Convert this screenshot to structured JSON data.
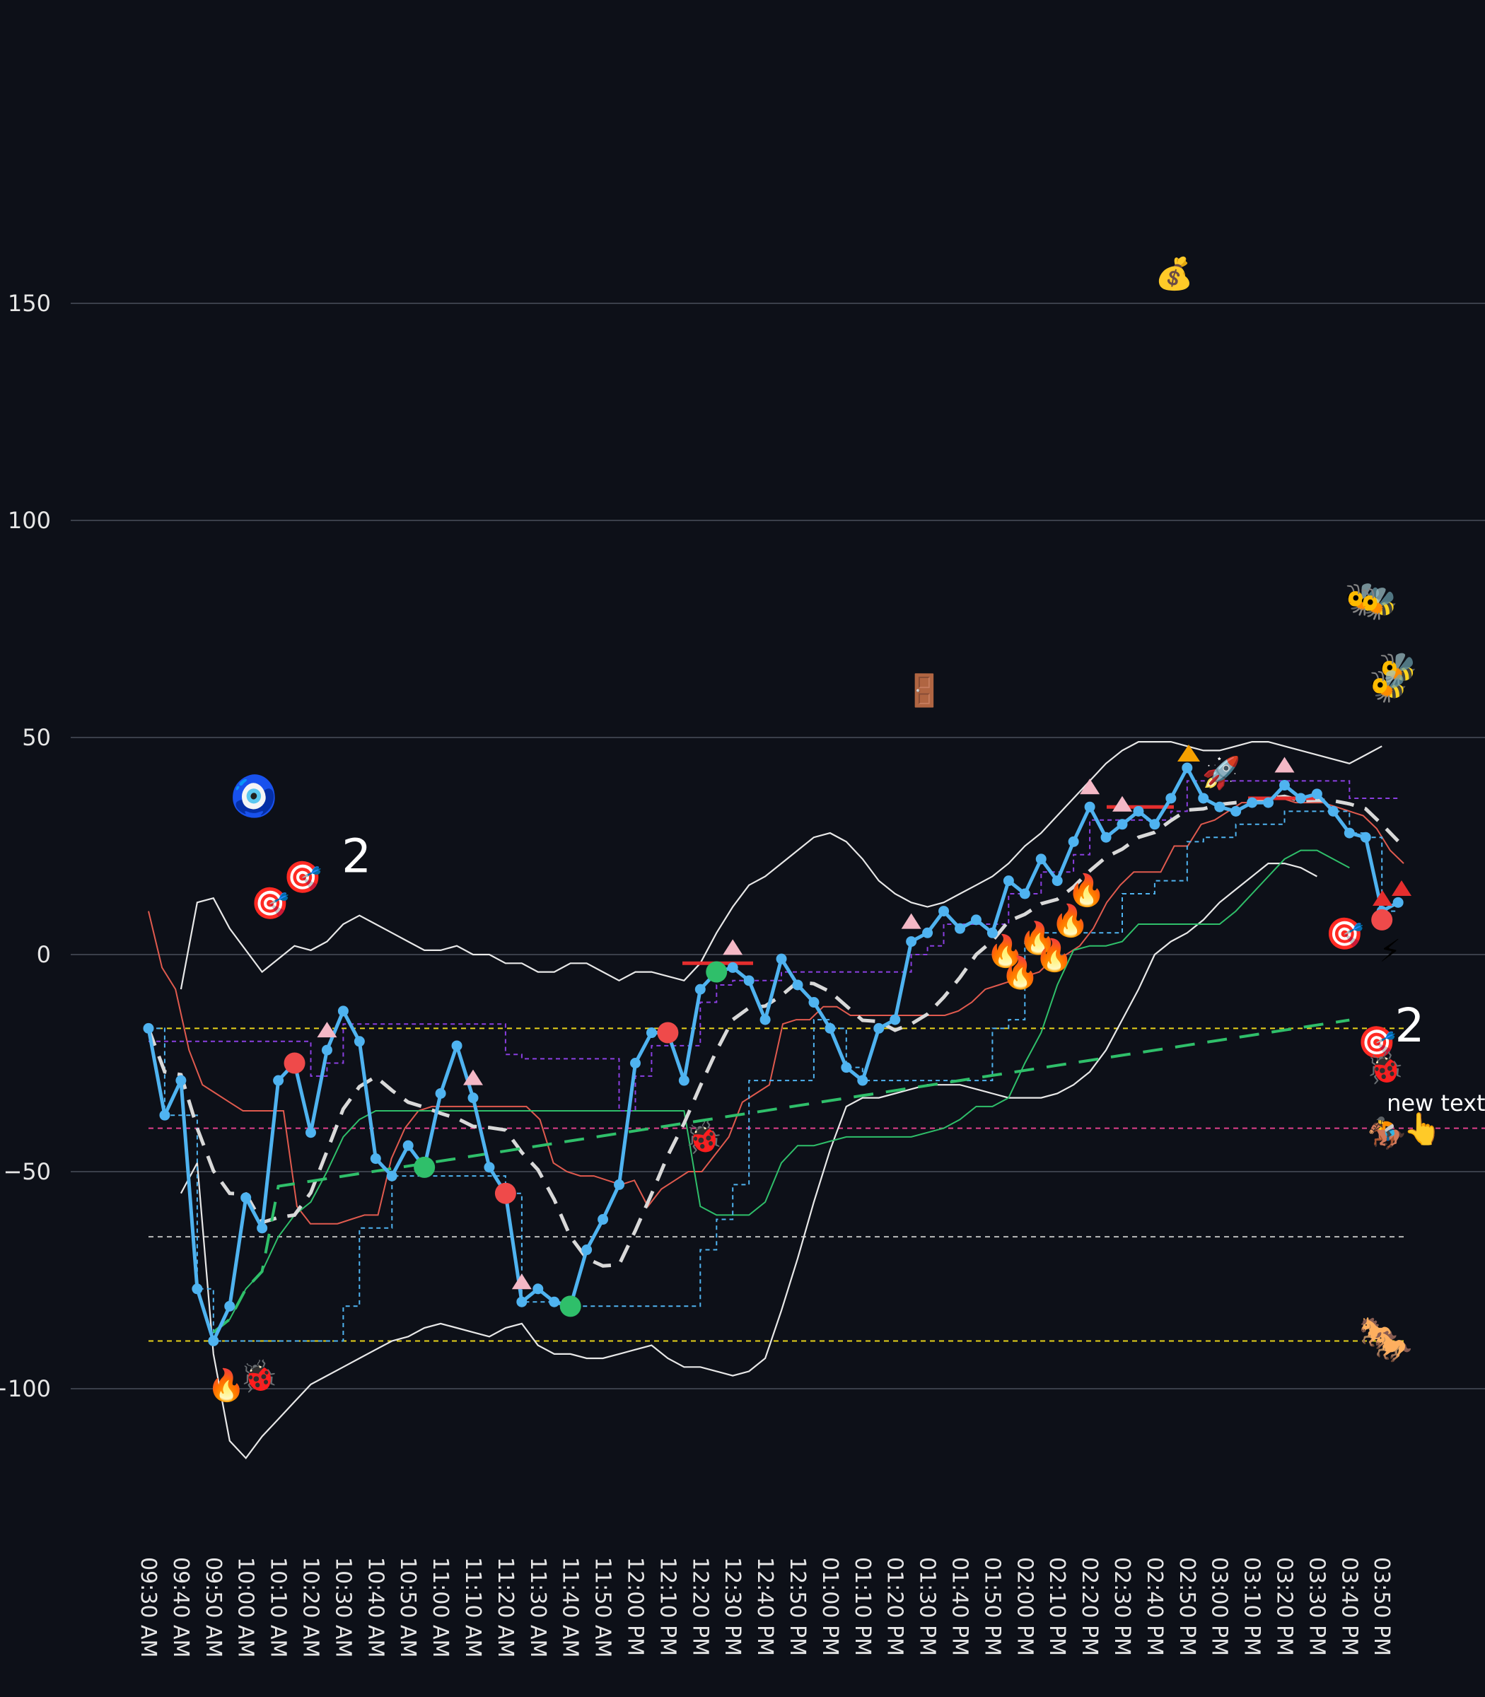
{
  "chart_data": {
    "type": "line",
    "title": "",
    "xlabel": "",
    "ylabel": "",
    "ylim": [
      -125,
      210
    ],
    "yticks": [
      150,
      100,
      50,
      0,
      -50,
      -100
    ],
    "ytick_labels": [
      "150",
      "100",
      "50",
      "0",
      "−50",
      "−100"
    ],
    "grid": true,
    "x_labels": [
      "09:30 AM",
      "09:40 AM",
      "09:50 AM",
      "10:00 AM",
      "10:10 AM",
      "10:20 AM",
      "10:30 AM",
      "10:40 AM",
      "10:50 AM",
      "11:00 AM",
      "11:10 AM",
      "11:20 AM",
      "11:30 AM",
      "11:40 AM",
      "11:50 AM",
      "12:00 PM",
      "12:10 PM",
      "12:20 PM",
      "12:30 PM",
      "12:40 PM",
      "12:50 PM",
      "01:00 PM",
      "01:10 PM",
      "01:20 PM",
      "01:30 PM",
      "01:40 PM",
      "01:50 PM",
      "02:00 PM",
      "02:10 PM",
      "02:20 PM",
      "02:30 PM",
      "02:40 PM",
      "02:50 PM",
      "03:00 PM",
      "03:10 PM",
      "03:20 PM",
      "03:30 PM",
      "03:40 PM",
      "03:50 PM"
    ],
    "colors": {
      "price": "#4fb3f0",
      "bands": "#e8e8e8",
      "red_line": "#e05a4e",
      "green_line": "#2fbf6a",
      "purple_dash": "#8a3fe0",
      "blue_dash": "#4fb3f0",
      "ma_dash": "#d9d9d9",
      "green_dash": "#2fbf6a",
      "yellow_level": "#e8d21a",
      "magenta_level": "#e0408a",
      "gray_level": "#bbbbbb",
      "buy": "#2fbf6a",
      "sell": "#ef4a4a",
      "tri": "#f4b8c6"
    },
    "series": [
      {
        "key": "price",
        "values": [
          -17,
          -37,
          -29,
          -77,
          -89,
          -81,
          -56,
          -63,
          -29,
          -25,
          -41,
          -22,
          -13,
          -20,
          -47,
          -51,
          -44,
          -49,
          -32,
          -21,
          -33,
          -49,
          -55,
          -80,
          -77,
          -80,
          -81,
          -68,
          -61,
          -53,
          -25,
          -18,
          -18,
          -29,
          -8,
          -4,
          -3,
          -6,
          -15,
          -1,
          -7,
          -11,
          -17,
          -26,
          -29,
          -17,
          -15,
          3,
          5,
          10,
          6,
          8,
          5,
          17,
          14,
          22,
          17,
          26,
          34,
          27,
          30,
          33,
          30,
          36,
          43,
          36,
          34,
          33,
          35,
          35,
          39,
          36,
          37,
          33,
          28,
          27,
          10,
          12
        ]
      },
      {
        "key": "upper_band",
        "values": [
          null,
          null,
          -8,
          12,
          13,
          6,
          1,
          -4,
          -1,
          2,
          1,
          3,
          7,
          9,
          7,
          5,
          3,
          1,
          1,
          2,
          0,
          0,
          -2,
          -2,
          -4,
          -4,
          -2,
          -2,
          -4,
          -6,
          -4,
          -4,
          -5,
          -6,
          -2,
          5,
          11,
          16,
          18,
          21,
          24,
          27,
          28,
          26,
          22,
          17,
          14,
          12,
          11,
          12,
          14,
          16,
          18,
          21,
          25,
          28,
          32,
          36,
          40,
          44,
          47,
          49,
          49,
          49,
          48,
          47,
          47,
          48,
          49,
          49,
          48,
          47,
          46,
          45,
          44,
          46,
          48
        ]
      },
      {
        "key": "lower_band",
        "values": [
          null,
          null,
          -55,
          -48,
          -92,
          -112,
          -116,
          -111,
          -107,
          -103,
          -99,
          -97,
          -95,
          -93,
          -91,
          -89,
          -88,
          -86,
          -85,
          -86,
          -87,
          -88,
          -86,
          -85,
          -90,
          -92,
          -92,
          -93,
          -93,
          -92,
          -91,
          -90,
          -93,
          -95,
          -95,
          -96,
          -97,
          -96,
          -93,
          -82,
          -70,
          -57,
          -45,
          -35,
          -33,
          -33,
          -32,
          -31,
          -30,
          -30,
          -30,
          -31,
          -32,
          -33,
          -33,
          -33,
          -32,
          -30,
          -27,
          -22,
          -15,
          -8,
          0,
          3,
          5,
          8,
          12,
          15,
          18,
          21,
          21,
          20,
          18
        ]
      },
      {
        "key": "red_line",
        "values": [
          10,
          -3,
          -8,
          -22,
          -30,
          -32,
          -34,
          -36,
          -36,
          -36,
          -36,
          -58,
          -62,
          -62,
          -62,
          -61,
          -60,
          -60,
          -47,
          -40,
          -36,
          -35,
          -35,
          -35,
          -35,
          -35,
          -35,
          -35,
          -35,
          -38,
          -48,
          -50,
          -51,
          -51,
          -52,
          -53,
          -52,
          -58,
          -54,
          -52,
          -50,
          -50,
          -46,
          -42,
          -34,
          -32,
          -30,
          -16,
          -15,
          -15,
          -12,
          -12,
          -14,
          -14,
          -14,
          -14,
          -14,
          -14,
          -14,
          -14,
          -13,
          -11,
          -8,
          -7,
          -6,
          -5,
          -4,
          -1,
          0,
          2,
          6,
          12,
          16,
          19,
          19,
          19,
          25,
          25,
          30,
          31,
          33,
          35,
          35,
          36,
          36,
          35,
          35,
          35,
          34,
          33,
          32,
          29,
          24,
          21
        ]
      },
      {
        "key": "green_line",
        "values": [
          null,
          null,
          null,
          null,
          -87,
          -84,
          -77,
          -73,
          -65,
          -60,
          -57,
          -50,
          -42,
          -38,
          -36,
          -36,
          -36,
          -36,
          -36,
          -36,
          -36,
          -36,
          -36,
          -36,
          -36,
          -36,
          -36,
          -36,
          -36,
          -36,
          -36,
          -36,
          -36,
          -36,
          -58,
          -60,
          -60,
          -60,
          -57,
          -48,
          -44,
          -44,
          -43,
          -42,
          -42,
          -42,
          -42,
          -42,
          -41,
          -40,
          -38,
          -35,
          -35,
          -33,
          -25,
          -18,
          -7,
          1,
          2,
          2,
          3,
          7,
          7,
          7,
          7,
          7,
          7,
          10,
          14,
          18,
          22,
          24,
          24,
          22,
          20
        ]
      }
    ],
    "levels": [
      {
        "key": "yellow_upper",
        "value": -17
      },
      {
        "key": "magenta",
        "value": -40
      },
      {
        "key": "gray",
        "value": -65
      },
      {
        "key": "yellow_lower",
        "value": -89
      }
    ],
    "markers": [
      {
        "type": "buy",
        "x_index": 17,
        "y": -49
      },
      {
        "type": "buy",
        "x_index": 26,
        "y": -81
      },
      {
        "type": "buy",
        "x_index": 35,
        "y": -4
      },
      {
        "type": "sell",
        "x_index": 9,
        "y": -25
      },
      {
        "type": "sell",
        "x_index": 22,
        "y": -55
      },
      {
        "type": "sell",
        "x_index": 32,
        "y": -18
      },
      {
        "type": "sell",
        "x_index": 76,
        "y": 8
      }
    ],
    "annotations": [
      {
        "type": "text",
        "text": "2",
        "x_index": 11.9,
        "y": 19
      },
      {
        "type": "text",
        "text": "2",
        "x_index": 76.8,
        "y": -20
      },
      {
        "type": "text",
        "text": "new text",
        "x_index": 76.3,
        "y": -36
      }
    ],
    "emojis": [
      {
        "icon": "nazar-amulet-icon",
        "glyph": "🧿",
        "x_index": 6.5,
        "y": 36
      },
      {
        "icon": "target-icon",
        "glyph": "🎯",
        "x_index": 7.5,
        "y": 12
      },
      {
        "icon": "target-icon",
        "glyph": "🎯",
        "x_index": 9.5,
        "y": 18
      },
      {
        "icon": "target-icon",
        "glyph": "🎯",
        "x_index": 73.7,
        "y": 5
      },
      {
        "icon": "target-icon",
        "glyph": "🎯",
        "x_index": 75.7,
        "y": -20
      },
      {
        "icon": "money-bag-icon",
        "glyph": "💰",
        "x_index": 63.2,
        "y": 157
      },
      {
        "icon": "door-icon",
        "glyph": "🚪",
        "x_index": 47.8,
        "y": 61
      },
      {
        "icon": "bee-icon",
        "glyph": "🐝",
        "x_index": 74.9,
        "y": 82
      },
      {
        "icon": "bee-icon",
        "glyph": "🐝",
        "x_index": 75.8,
        "y": 81
      },
      {
        "icon": "bee-icon",
        "glyph": "🐝",
        "x_index": 77.0,
        "y": 66
      },
      {
        "icon": "bee-icon",
        "glyph": "🐝",
        "x_index": 76.4,
        "y": 62
      },
      {
        "icon": "fire-icon",
        "glyph": "🔥",
        "x_index": 4.8,
        "y": -99
      },
      {
        "icon": "fire-icon",
        "glyph": "🔥",
        "x_index": 52.8,
        "y": 1
      },
      {
        "icon": "fire-icon",
        "glyph": "🔥",
        "x_index": 53.7,
        "y": -4
      },
      {
        "icon": "fire-icon",
        "glyph": "🔥",
        "x_index": 54.8,
        "y": 4
      },
      {
        "icon": "fire-icon",
        "glyph": "🔥",
        "x_index": 55.8,
        "y": 0
      },
      {
        "icon": "fire-icon",
        "glyph": "🔥",
        "x_index": 56.8,
        "y": 8
      },
      {
        "icon": "fire-icon",
        "glyph": "🔥",
        "x_index": 57.8,
        "y": 15
      },
      {
        "icon": "beetle-icon",
        "glyph": "🐞",
        "x_index": 6.8,
        "y": -97
      },
      {
        "icon": "beetle-icon",
        "glyph": "🐞",
        "x_index": 34.2,
        "y": -42
      },
      {
        "icon": "beetle-icon",
        "glyph": "🐞",
        "x_index": 76.2,
        "y": -26
      },
      {
        "icon": "lightning-icon",
        "glyph": "⚡",
        "x_index": 76.5,
        "y": 1
      },
      {
        "icon": "horse-rider-icon",
        "glyph": "🏇",
        "x_index": 76.3,
        "y": -41
      },
      {
        "icon": "horse-icon",
        "glyph": "🐎",
        "x_index": 75.8,
        "y": -87
      },
      {
        "icon": "horse-icon",
        "glyph": "🐎",
        "x_index": 76.7,
        "y": -90
      },
      {
        "icon": "pointing-finger-icon",
        "glyph": "👆",
        "x_index": 78.5,
        "y": -40
      },
      {
        "icon": "rocket-icon",
        "glyph": "🚀",
        "x_index": 66.1,
        "y": 42
      }
    ]
  }
}
